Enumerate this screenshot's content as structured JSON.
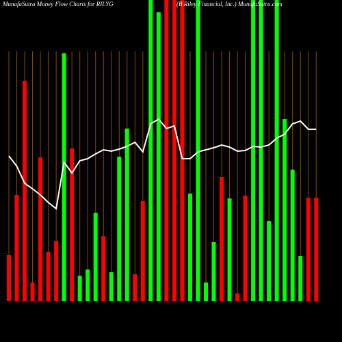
{
  "chart_data": {
    "type": "bar",
    "title": "MunafaSutra  Money Flow  Charts for RILYG",
    "subtitle": "(B Riley Financial, Inc.) MunafaSutra.com",
    "categories": [
      null,
      null,
      null,
      null,
      null,
      null,
      null,
      null,
      null,
      null,
      null,
      null,
      null,
      null,
      null,
      null,
      null,
      null,
      null,
      null,
      null,
      null,
      null,
      null,
      null,
      null,
      null,
      null,
      null,
      null,
      null,
      null,
      null,
      null,
      null,
      null,
      null,
      null,
      null,
      null
    ],
    "values": [
      67,
      155,
      322,
      27,
      210,
      72,
      88,
      362,
      223,
      37,
      46,
      129,
      95,
      42,
      211,
      252,
      39,
      146,
      440,
      422,
      440,
      440,
      440,
      157,
      440,
      27,
      86,
      181,
      150,
      11,
      154,
      440,
      440,
      117,
      440,
      266,
      192,
      66,
      151,
      151
    ],
    "bar_colors": [
      "red",
      "red",
      "red",
      "red",
      "red",
      "red",
      "red",
      "lime",
      "red",
      "lime",
      "lime",
      "lime",
      "red",
      "lime",
      "lime",
      "lime",
      "red",
      "red",
      "lime",
      "lime",
      "red",
      "red",
      "red",
      "lime",
      "lime",
      "lime",
      "lime",
      "red",
      "lime",
      "red",
      "red",
      "lime",
      "lime",
      "lime",
      "lime",
      "lime",
      "lime",
      "lime",
      "red",
      "red"
    ],
    "line_values": [
      212,
      197,
      172,
      164,
      155,
      144,
      135,
      203,
      187,
      205,
      208,
      215,
      221,
      219,
      222,
      226,
      232,
      218,
      259,
      266,
      252,
      256,
      208,
      208,
      218,
      221,
      224,
      228,
      225,
      219,
      220,
      226,
      225,
      228,
      238,
      244,
      259,
      263,
      251,
      251
    ],
    "line_color": "#ffffff",
    "grid_color": "#8a4a00",
    "ylim": [
      0,
      440
    ]
  }
}
